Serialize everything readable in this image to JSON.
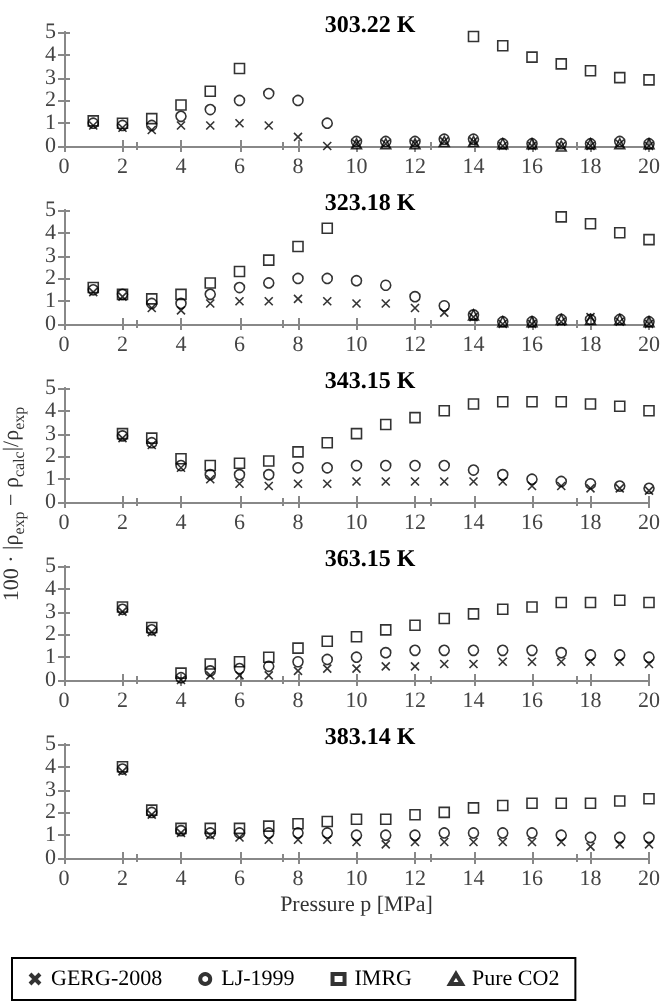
{
  "chart_data": [
    {
      "type": "scatter",
      "title": "303.22 K",
      "x": [
        1,
        2,
        3,
        4,
        5,
        6,
        7,
        8,
        9,
        10,
        11,
        12,
        13,
        14,
        15,
        16,
        17,
        18,
        19,
        20
      ],
      "xlim": [
        0,
        20
      ],
      "xticks": [
        0,
        2,
        4,
        6,
        8,
        10,
        12,
        14,
        16,
        18,
        20
      ],
      "ylim": [
        0,
        5
      ],
      "yticks": [
        0,
        1,
        2,
        3,
        4,
        5
      ],
      "grid": false,
      "series": [
        {
          "marker": "cross",
          "color": "#000000",
          "values": [
            0.9,
            0.8,
            0.7,
            0.9,
            0.9,
            1.0,
            0.9,
            0.4,
            0.0,
            0.1,
            0.1,
            0.1,
            0.2,
            0.2,
            0.0,
            0.0,
            0.0,
            0.0,
            0.1,
            0.0
          ]
        },
        {
          "marker": "circle",
          "color": "#000000",
          "values": [
            1.0,
            0.9,
            0.9,
            1.3,
            1.6,
            2.0,
            2.3,
            2.0,
            1.0,
            0.2,
            0.2,
            0.2,
            0.3,
            0.3,
            0.1,
            0.1,
            0.1,
            0.1,
            0.2,
            0.1
          ]
        },
        {
          "marker": "square",
          "color": "#000000",
          "values": [
            1.1,
            1.0,
            1.2,
            1.8,
            2.4,
            3.4,
            null,
            null,
            null,
            null,
            null,
            null,
            null,
            4.8,
            4.4,
            3.9,
            3.6,
            3.3,
            3.0,
            2.9
          ]
        },
        {
          "marker": "triangle",
          "color": "#000000",
          "values": [
            null,
            null,
            null,
            null,
            null,
            null,
            null,
            null,
            null,
            0.1,
            0.1,
            0.1,
            0.2,
            0.2,
            0.1,
            0.1,
            0.0,
            0.1,
            0.1,
            0.1
          ]
        }
      ]
    },
    {
      "type": "scatter",
      "title": "323.18 K",
      "x": [
        1,
        2,
        3,
        4,
        5,
        6,
        7,
        8,
        9,
        10,
        11,
        12,
        13,
        14,
        15,
        16,
        17,
        18,
        19,
        20
      ],
      "xlim": [
        0,
        20
      ],
      "xticks": [
        0,
        2,
        4,
        6,
        8,
        10,
        12,
        14,
        16,
        18,
        20
      ],
      "ylim": [
        0,
        5
      ],
      "yticks": [
        0,
        1,
        2,
        3,
        4,
        5
      ],
      "grid": false,
      "series": [
        {
          "marker": "cross",
          "color": "#000000",
          "values": [
            1.4,
            1.2,
            0.7,
            0.6,
            0.9,
            1.0,
            1.0,
            1.1,
            1.0,
            0.9,
            0.9,
            0.7,
            0.5,
            0.3,
            0.0,
            0.0,
            0.1,
            0.3,
            0.1,
            0.0
          ]
        },
        {
          "marker": "circle",
          "color": "#000000",
          "values": [
            1.5,
            1.3,
            0.9,
            0.9,
            1.3,
            1.6,
            1.8,
            2.0,
            2.0,
            1.9,
            1.7,
            1.2,
            0.8,
            0.4,
            0.1,
            0.1,
            0.2,
            0.2,
            0.2,
            0.1
          ]
        },
        {
          "marker": "square",
          "color": "#000000",
          "values": [
            1.6,
            1.3,
            1.1,
            1.3,
            1.8,
            2.3,
            2.8,
            3.4,
            4.2,
            null,
            null,
            null,
            null,
            null,
            null,
            null,
            4.7,
            4.4,
            4.0,
            3.7
          ]
        },
        {
          "marker": "triangle",
          "color": "#000000",
          "values": [
            null,
            null,
            null,
            null,
            null,
            null,
            null,
            null,
            null,
            null,
            null,
            null,
            null,
            0.4,
            0.1,
            0.1,
            0.2,
            0.2,
            0.2,
            0.1
          ]
        }
      ]
    },
    {
      "type": "scatter",
      "title": "343.15 K",
      "ylabel": "100 · |ρ$_{exp}$ − ρ$_{calc}$|/ρ$_{exp}$",
      "x": [
        2,
        3,
        4,
        5,
        6,
        7,
        8,
        9,
        10,
        11,
        12,
        13,
        14,
        15,
        16,
        17,
        18,
        19,
        20
      ],
      "xlim": [
        0,
        20
      ],
      "xticks": [
        0,
        2,
        4,
        6,
        8,
        10,
        12,
        14,
        16,
        18,
        20
      ],
      "ylim": [
        0,
        5
      ],
      "yticks": [
        0,
        1,
        2,
        3,
        4,
        5
      ],
      "grid": false,
      "series": [
        {
          "marker": "cross",
          "color": "#000000",
          "values": [
            2.8,
            2.5,
            1.5,
            1.0,
            0.8,
            0.7,
            0.8,
            0.8,
            0.9,
            0.9,
            0.9,
            0.9,
            0.9,
            0.9,
            0.7,
            0.7,
            0.6,
            0.6,
            0.5
          ]
        },
        {
          "marker": "circle",
          "color": "#000000",
          "values": [
            2.9,
            2.6,
            1.6,
            1.2,
            1.2,
            1.2,
            1.5,
            1.5,
            1.6,
            1.6,
            1.6,
            1.6,
            1.4,
            1.2,
            1.0,
            0.9,
            0.8,
            0.7,
            0.6
          ]
        },
        {
          "marker": "square",
          "color": "#000000",
          "values": [
            3.0,
            2.8,
            1.9,
            1.6,
            1.7,
            1.8,
            2.2,
            2.6,
            3.0,
            3.4,
            3.7,
            4.0,
            4.3,
            4.4,
            4.4,
            4.4,
            4.3,
            4.2,
            4.0
          ]
        }
      ]
    },
    {
      "type": "scatter",
      "title": "363.15 K",
      "x": [
        2,
        3,
        4,
        5,
        6,
        7,
        8,
        9,
        10,
        11,
        12,
        13,
        14,
        15,
        16,
        17,
        18,
        19,
        20
      ],
      "xlim": [
        0,
        20
      ],
      "xticks": [
        0,
        2,
        4,
        6,
        8,
        10,
        12,
        14,
        16,
        18,
        20
      ],
      "ylim": [
        0,
        5
      ],
      "yticks": [
        0,
        1,
        2,
        3,
        4,
        5
      ],
      "grid": false,
      "series": [
        {
          "marker": "cross",
          "color": "#000000",
          "values": [
            3.0,
            2.1,
            0.0,
            0.2,
            0.2,
            0.2,
            0.4,
            0.5,
            0.5,
            0.6,
            0.6,
            0.7,
            0.7,
            0.8,
            0.8,
            0.8,
            0.8,
            0.8,
            0.7
          ]
        },
        {
          "marker": "circle",
          "color": "#000000",
          "values": [
            3.1,
            2.2,
            0.1,
            0.4,
            0.5,
            0.6,
            0.8,
            0.9,
            1.0,
            1.2,
            1.3,
            1.3,
            1.3,
            1.3,
            1.3,
            1.2,
            1.1,
            1.1,
            1.0
          ]
        },
        {
          "marker": "square",
          "color": "#000000",
          "values": [
            3.2,
            2.3,
            0.3,
            0.7,
            0.8,
            1.0,
            1.4,
            1.7,
            1.9,
            2.2,
            2.4,
            2.7,
            2.9,
            3.1,
            3.2,
            3.4,
            3.4,
            3.5,
            3.4
          ]
        }
      ]
    },
    {
      "type": "scatter",
      "title": "383.14 K",
      "xlabel": "Pressure p [MPa]",
      "legend": "bottom",
      "x": [
        2,
        3,
        4,
        5,
        6,
        7,
        8,
        9,
        10,
        11,
        12,
        13,
        14,
        15,
        16,
        17,
        18,
        19,
        20
      ],
      "xlim": [
        0,
        20
      ],
      "xticks": [
        0,
        2,
        4,
        6,
        8,
        10,
        12,
        14,
        16,
        18,
        20
      ],
      "ylim": [
        0,
        5
      ],
      "yticks": [
        0,
        1,
        2,
        3,
        4,
        5
      ],
      "grid": false,
      "series": [
        {
          "name": "GERG-2008",
          "marker": "cross",
          "color": "#000000",
          "values": [
            3.8,
            1.9,
            1.1,
            1.0,
            0.9,
            0.8,
            0.8,
            0.8,
            0.7,
            0.6,
            0.7,
            0.7,
            0.7,
            0.7,
            0.7,
            0.7,
            0.5,
            0.6,
            0.6
          ]
        },
        {
          "name": "LJ-1999",
          "marker": "circle",
          "color": "#000000",
          "values": [
            3.9,
            2.0,
            1.2,
            1.1,
            1.1,
            1.1,
            1.1,
            1.1,
            1.0,
            1.0,
            1.0,
            1.1,
            1.1,
            1.1,
            1.1,
            1.0,
            0.9,
            0.9,
            0.9
          ]
        },
        {
          "name": "IMRG",
          "marker": "square",
          "color": "#000000",
          "values": [
            4.0,
            2.1,
            1.3,
            1.3,
            1.3,
            1.4,
            1.5,
            1.6,
            1.7,
            1.7,
            1.9,
            2.0,
            2.2,
            2.3,
            2.4,
            2.4,
            2.4,
            2.5,
            2.6
          ]
        },
        {
          "name": "Pure CO2",
          "marker": "triangle",
          "color": "#000000",
          "values": [
            null,
            null,
            null,
            null,
            null,
            null,
            null,
            null,
            null,
            null,
            null,
            null,
            null,
            null,
            null,
            null,
            null,
            null,
            null
          ]
        }
      ]
    }
  ]
}
